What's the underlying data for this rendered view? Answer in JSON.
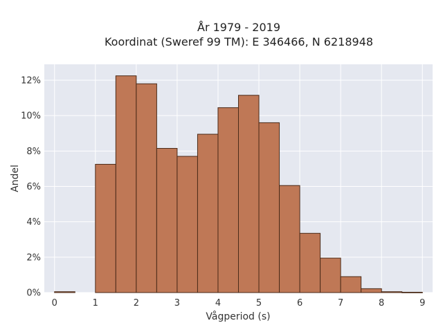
{
  "chart_data": {
    "type": "bar",
    "title_line1": "År 1979 - 2019",
    "title_line2": "Koordinat (Sweref 99 TM): E 346466, N 6218948",
    "xlabel": "Vågperiod (s)",
    "ylabel": "Andel",
    "xlim": [
      -0.25,
      9.25
    ],
    "ylim": [
      0,
      12.9
    ],
    "x_ticks": [
      0,
      1,
      2,
      3,
      4,
      5,
      6,
      7,
      8,
      9
    ],
    "y_ticks": [
      0,
      2,
      4,
      6,
      8,
      10,
      12
    ],
    "y_tick_labels": [
      "0%",
      "2%",
      "4%",
      "6%",
      "8%",
      "10%",
      "12%"
    ],
    "bins": [
      {
        "x0": 0.0,
        "x1": 0.5,
        "value": 0.05
      },
      {
        "x0": 0.5,
        "x1": 1.0,
        "value": 0.0
      },
      {
        "x0": 1.0,
        "x1": 1.5,
        "value": 7.25
      },
      {
        "x0": 1.5,
        "x1": 2.0,
        "value": 12.25
      },
      {
        "x0": 2.0,
        "x1": 2.5,
        "value": 11.8
      },
      {
        "x0": 2.5,
        "x1": 3.0,
        "value": 8.15
      },
      {
        "x0": 3.0,
        "x1": 3.5,
        "value": 7.7
      },
      {
        "x0": 3.5,
        "x1": 4.0,
        "value": 8.95
      },
      {
        "x0": 4.0,
        "x1": 4.5,
        "value": 10.45
      },
      {
        "x0": 4.5,
        "x1": 5.0,
        "value": 11.15
      },
      {
        "x0": 5.0,
        "x1": 5.5,
        "value": 9.6
      },
      {
        "x0": 5.5,
        "x1": 6.0,
        "value": 6.05
      },
      {
        "x0": 6.0,
        "x1": 6.5,
        "value": 3.35
      },
      {
        "x0": 6.5,
        "x1": 7.0,
        "value": 1.95
      },
      {
        "x0": 7.0,
        "x1": 7.5,
        "value": 0.9
      },
      {
        "x0": 7.5,
        "x1": 8.0,
        "value": 0.22
      },
      {
        "x0": 8.0,
        "x1": 8.5,
        "value": 0.05
      },
      {
        "x0": 8.5,
        "x1": 9.0,
        "value": 0.02
      }
    ],
    "colors": {
      "bar_fill": "#bf7856",
      "bar_edge": "#4a2a18",
      "plot_background": "#e5e8f0",
      "grid": "#ffffff"
    },
    "grid": true,
    "legend": false
  }
}
